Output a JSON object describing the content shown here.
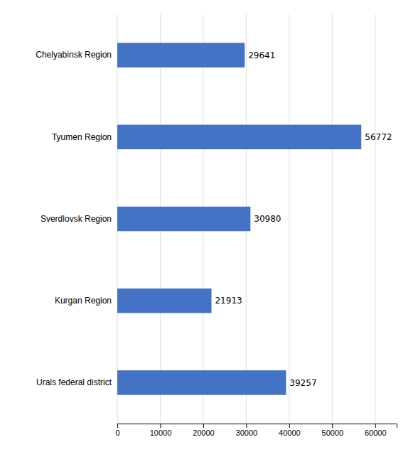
{
  "chart_data": {
    "type": "bar",
    "orientation": "horizontal",
    "categories": [
      "Urals federal district",
      "Kurgan Region",
      "Sverdlovsk Region",
      "Tyumen Region",
      "Chelyabinsk Region"
    ],
    "values": [
      39257,
      21913,
      30980,
      56772,
      29641
    ],
    "color": "#4472C4",
    "xlim": [
      0,
      65000
    ],
    "xticks": [
      0,
      10000,
      20000,
      30000,
      40000,
      50000,
      60000
    ],
    "grid": true,
    "data_labels": true
  }
}
